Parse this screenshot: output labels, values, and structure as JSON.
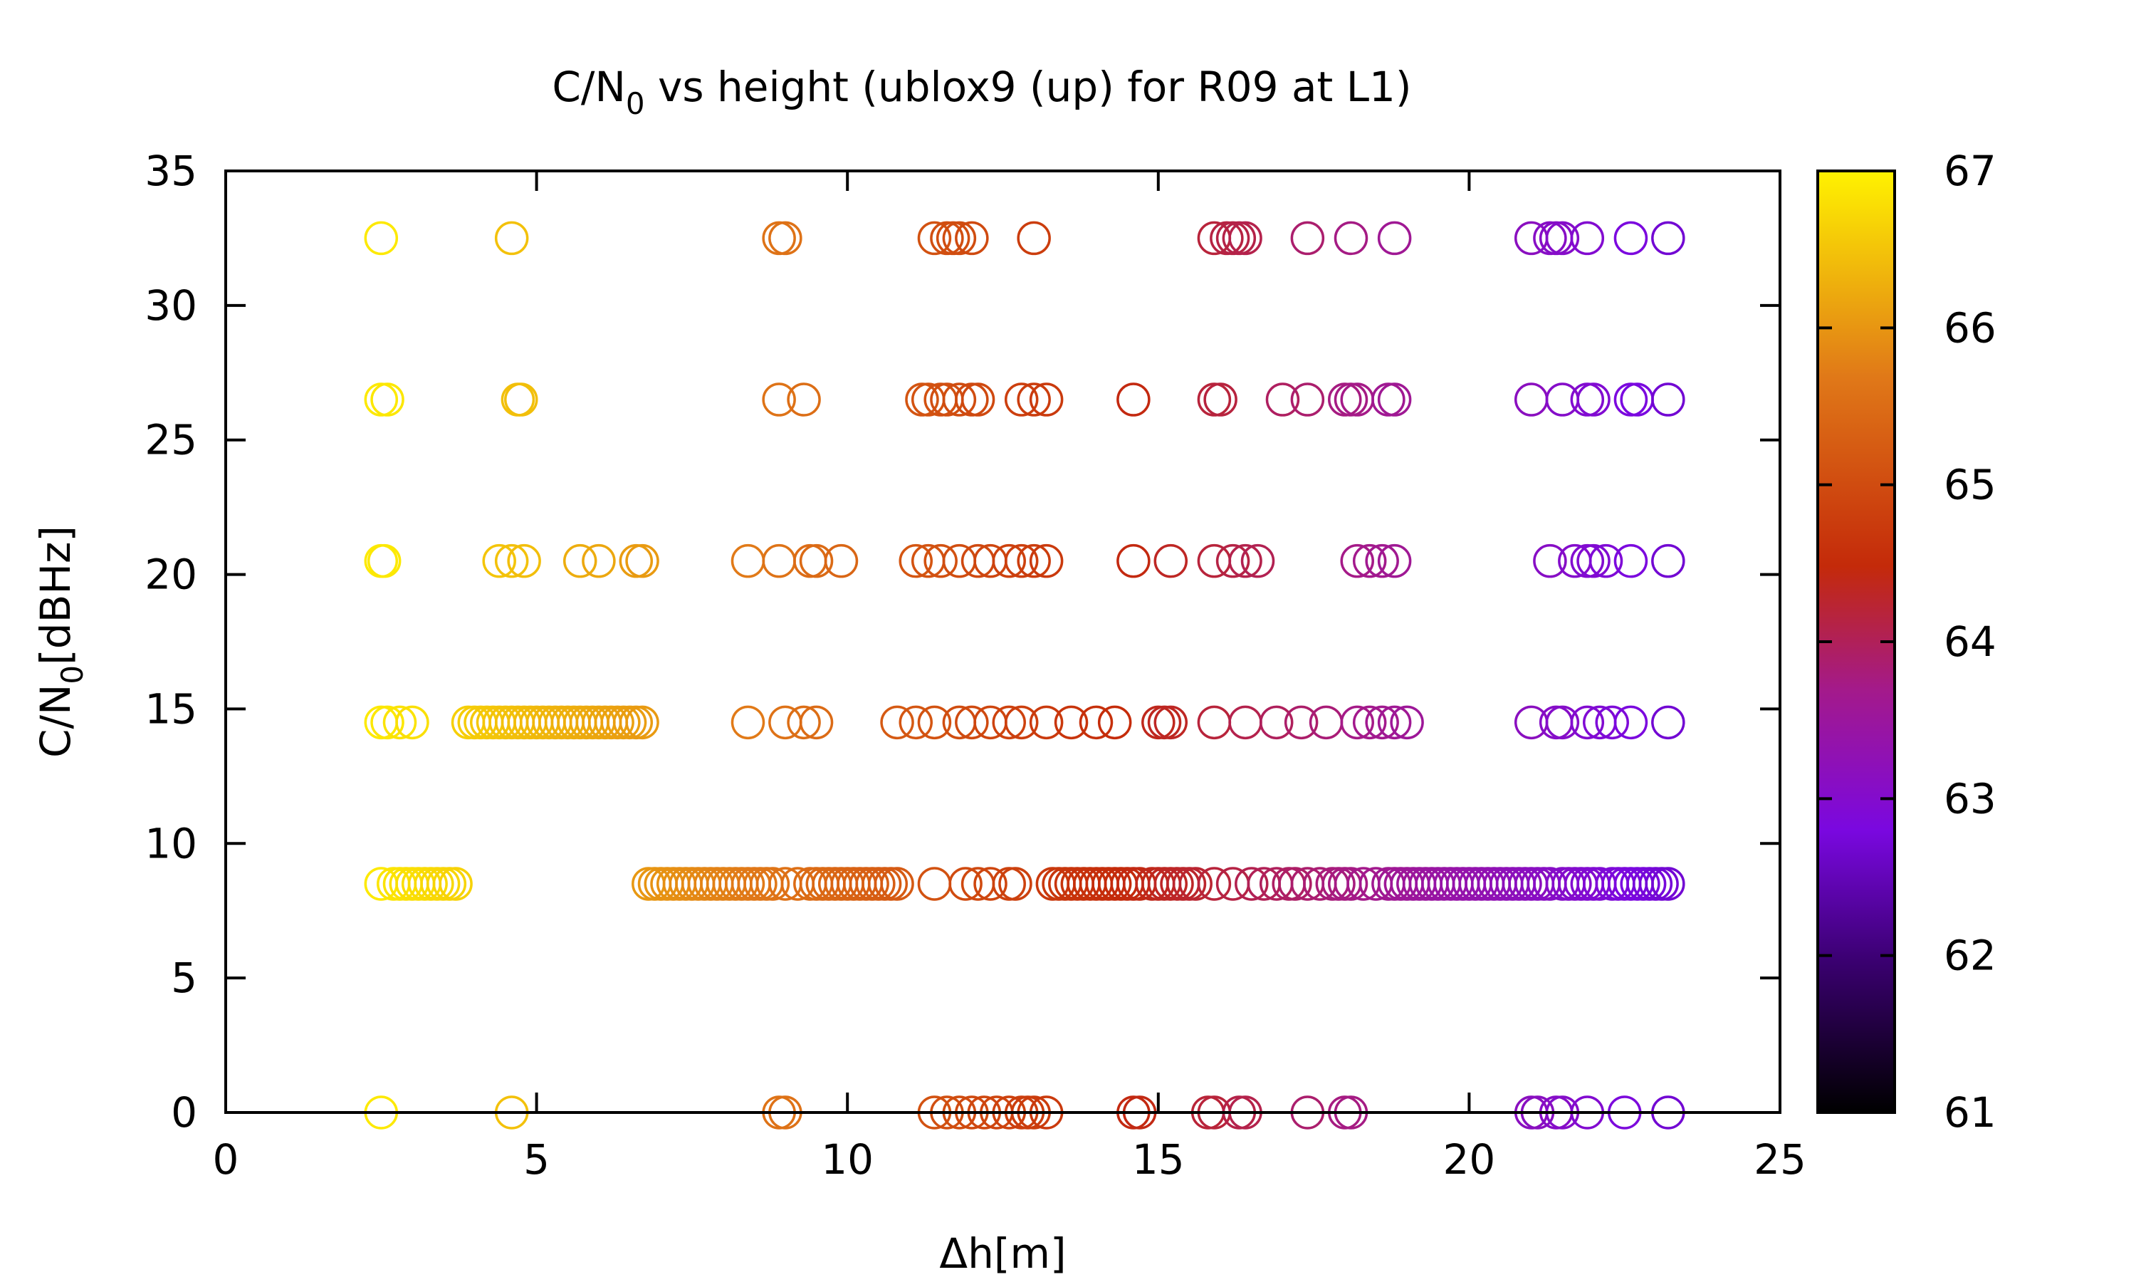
{
  "chart_data": {
    "type": "scatter",
    "title": "C/N0 vs height (ublox9 (up) for R09 at L1)",
    "title_main": "C/N",
    "title_sub": "0",
    "title_rest": " vs height (ublox9 (up) for R09 at L1)",
    "xlabel": "Δh[m]",
    "ylabel": "C/N0[dBHz]",
    "ylabel_main": "C/N",
    "ylabel_sub": "0",
    "ylabel_rest": "[dBHz]",
    "xlim": [
      0,
      25
    ],
    "ylim": [
      0,
      35
    ],
    "xticks": [
      0,
      5,
      10,
      15,
      20,
      25
    ],
    "yticks": [
      0,
      5,
      10,
      15,
      20,
      25,
      30,
      35
    ],
    "grid": false,
    "legend": "none",
    "colorbar": {
      "range": [
        61,
        67
      ],
      "ticks": [
        61,
        62,
        63,
        64,
        65,
        66,
        67
      ],
      "palette": [
        "#000000",
        "#5c00b0",
        "#8a10f0",
        "#b01c6e",
        "#c42a0a",
        "#e07818",
        "#fff200"
      ]
    },
    "marker": "open-circle",
    "rows": [
      {
        "y": 32.5,
        "x": [
          2.5,
          4.6,
          8.9,
          9.0,
          11.4,
          11.6,
          11.7,
          11.8,
          12.0,
          13.0,
          15.9,
          16.1,
          16.2,
          16.3,
          16.4,
          17.4,
          18.1,
          18.8,
          21.0,
          21.3,
          21.4,
          21.5,
          21.9,
          22.6,
          23.2
        ]
      },
      {
        "y": 26.5,
        "x": [
          2.5,
          2.6,
          4.7,
          4.75,
          8.9,
          9.3,
          11.2,
          11.3,
          11.5,
          11.6,
          11.8,
          12.0,
          12.1,
          12.8,
          13.0,
          13.2,
          14.6,
          15.9,
          16.0,
          17.0,
          17.4,
          18.0,
          18.1,
          18.2,
          18.7,
          18.8,
          21.0,
          21.5,
          21.9,
          22.0,
          22.6,
          22.7,
          23.2
        ]
      },
      {
        "y": 20.5,
        "x": [
          2.5,
          2.55,
          4.4,
          4.6,
          4.8,
          5.7,
          6.0,
          6.6,
          6.7,
          8.4,
          8.9,
          9.4,
          9.5,
          9.9,
          11.1,
          11.3,
          11.5,
          11.8,
          12.1,
          12.3,
          12.6,
          12.8,
          13.0,
          13.2,
          14.6,
          15.2,
          15.9,
          16.2,
          16.4,
          16.6,
          18.2,
          18.4,
          18.6,
          18.8,
          21.3,
          21.7,
          21.9,
          22.0,
          22.2,
          22.6,
          23.2
        ]
      },
      {
        "y": 14.5,
        "x": [
          2.5,
          2.6,
          2.8,
          3.0,
          3.9,
          4.0,
          4.1,
          4.2,
          4.3,
          4.4,
          4.5,
          4.6,
          4.7,
          4.8,
          4.9,
          5.0,
          5.1,
          5.2,
          5.3,
          5.4,
          5.5,
          5.6,
          5.7,
          5.8,
          5.9,
          6.0,
          6.1,
          6.2,
          6.3,
          6.4,
          6.5,
          6.6,
          6.7,
          8.4,
          9.0,
          9.3,
          9.5,
          10.8,
          11.1,
          11.4,
          11.8,
          12.0,
          12.3,
          12.6,
          12.8,
          13.2,
          13.6,
          14.0,
          14.3,
          15.0,
          15.1,
          15.2,
          15.9,
          16.4,
          16.9,
          17.3,
          17.7,
          18.2,
          18.4,
          18.6,
          18.8,
          19.0,
          21.0,
          21.4,
          21.5,
          21.9,
          22.1,
          22.3,
          22.6,
          23.2
        ]
      },
      {
        "y": 8.5,
        "x": [
          2.5,
          2.7,
          2.8,
          2.9,
          3.0,
          3.1,
          3.2,
          3.3,
          3.4,
          3.5,
          3.6,
          3.7,
          6.8,
          6.9,
          7.0,
          7.1,
          7.2,
          7.3,
          7.4,
          7.5,
          7.6,
          7.7,
          7.8,
          7.9,
          8.0,
          8.1,
          8.2,
          8.3,
          8.4,
          8.5,
          8.6,
          8.7,
          8.8,
          9.0,
          9.2,
          9.4,
          9.5,
          9.6,
          9.7,
          9.8,
          9.9,
          10.0,
          10.1,
          10.2,
          10.3,
          10.4,
          10.5,
          10.6,
          10.7,
          10.8,
          11.4,
          11.9,
          12.1,
          12.3,
          12.6,
          12.7,
          13.3,
          13.4,
          13.5,
          13.6,
          13.7,
          13.8,
          13.9,
          14.0,
          14.1,
          14.2,
          14.3,
          14.4,
          14.5,
          14.6,
          14.7,
          14.9,
          15.0,
          15.1,
          15.2,
          15.3,
          15.4,
          15.5,
          15.6,
          15.9,
          16.2,
          16.5,
          16.7,
          16.9,
          17.1,
          17.2,
          17.4,
          17.6,
          17.8,
          17.9,
          18.0,
          18.1,
          18.3,
          18.5,
          18.7,
          18.8,
          18.9,
          19.0,
          19.1,
          19.2,
          19.3,
          19.4,
          19.5,
          19.6,
          19.7,
          19.8,
          19.9,
          20.0,
          20.1,
          20.2,
          20.3,
          20.4,
          20.5,
          20.6,
          20.7,
          20.8,
          20.9,
          21.0,
          21.1,
          21.2,
          21.3,
          21.5,
          21.6,
          21.7,
          21.8,
          21.9,
          22.0,
          22.1,
          22.3,
          22.4,
          22.5,
          22.6,
          22.7,
          22.8,
          22.9,
          23.0,
          23.1,
          23.2
        ]
      },
      {
        "y": 0,
        "x": [
          2.5,
          4.6,
          8.9,
          9.0,
          11.4,
          11.6,
          11.8,
          12.0,
          12.2,
          12.4,
          12.6,
          12.8,
          12.9,
          13.0,
          13.2,
          14.6,
          14.7,
          15.8,
          15.9,
          16.3,
          16.4,
          17.4,
          18.0,
          18.1,
          21.0,
          21.1,
          21.4,
          21.5,
          21.9,
          22.5,
          23.2
        ]
      }
    ]
  }
}
